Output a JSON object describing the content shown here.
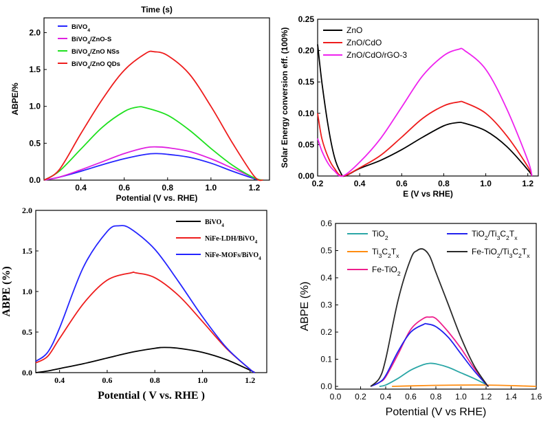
{
  "chart_data": [
    {
      "type": "line",
      "title": "Time (s)",
      "xlabel": "Potential (V vs. RHE)",
      "ylabel": "ABPE/%",
      "xlim": [
        0.23,
        1.27
      ],
      "ylim": [
        0,
        2.2
      ],
      "xticks": [
        0.4,
        0.6,
        0.8,
        1.0,
        1.2
      ],
      "yticks": [
        0.0,
        0.5,
        1.0,
        1.5,
        2.0
      ],
      "xtick_labels": [
        "0.4",
        "0.6",
        "0.8",
        "1.0",
        "1.2"
      ],
      "ytick_labels": [
        "0.0",
        "0.5",
        "1.0",
        "1.5",
        "2.0"
      ],
      "legend_position": "top-left",
      "series": [
        {
          "name": "BiVO₄",
          "color": "#2424ff",
          "x": [
            0.23,
            0.3,
            0.4,
            0.5,
            0.6,
            0.7,
            0.75,
            0.8,
            0.9,
            1.0,
            1.1,
            1.2,
            1.23
          ],
          "y": [
            0.0,
            0.04,
            0.12,
            0.21,
            0.29,
            0.35,
            0.36,
            0.35,
            0.31,
            0.23,
            0.12,
            0.02,
            0.0
          ]
        },
        {
          "name": "BiVO₄/ZnO-S",
          "color": "#e020e0",
          "x": [
            0.23,
            0.3,
            0.4,
            0.5,
            0.6,
            0.7,
            0.75,
            0.8,
            0.9,
            1.0,
            1.1,
            1.2,
            1.23
          ],
          "y": [
            0.0,
            0.04,
            0.14,
            0.25,
            0.36,
            0.44,
            0.45,
            0.44,
            0.39,
            0.29,
            0.16,
            0.03,
            0.0
          ]
        },
        {
          "name": "BiVO₄/ZnO NSs",
          "color": "#1ee01e",
          "x": [
            0.23,
            0.3,
            0.4,
            0.5,
            0.6,
            0.66,
            0.7,
            0.8,
            0.9,
            1.0,
            1.1,
            1.2,
            1.24
          ],
          "y": [
            0.0,
            0.12,
            0.42,
            0.72,
            0.93,
            0.99,
            0.98,
            0.88,
            0.68,
            0.43,
            0.2,
            0.03,
            0.0
          ]
        },
        {
          "name": "BiVO₄/ZnO QDs",
          "color": "#ee1c1c",
          "x": [
            0.23,
            0.3,
            0.4,
            0.5,
            0.6,
            0.7,
            0.74,
            0.8,
            0.9,
            1.0,
            1.1,
            1.2,
            1.24
          ],
          "y": [
            0.0,
            0.14,
            0.63,
            1.1,
            1.49,
            1.72,
            1.74,
            1.69,
            1.44,
            1.0,
            0.5,
            0.05,
            0.0
          ]
        }
      ]
    },
    {
      "type": "line",
      "xlabel": "E (V vs RHE)",
      "ylabel": "Solar Energy conversion eff. (100%)",
      "xlim": [
        0.2,
        1.25
      ],
      "ylim": [
        0,
        0.25
      ],
      "xticks": [
        0.2,
        0.4,
        0.6,
        0.8,
        1.0,
        1.2
      ],
      "yticks": [
        0.0,
        0.05,
        0.1,
        0.15,
        0.2,
        0.25
      ],
      "xtick_labels": [
        "0.2",
        "0.4",
        "0.6",
        "0.8",
        "1.0",
        "1.2"
      ],
      "ytick_labels": [
        "0.00",
        "0.05",
        "0.10",
        "0.15",
        "0.20",
        "0.25"
      ],
      "legend_position": "top-left",
      "series": [
        {
          "name": "ZnO",
          "color": "#000000",
          "x": [
            0.2,
            0.22,
            0.25,
            0.28,
            0.31,
            0.33,
            0.4,
            0.5,
            0.6,
            0.7,
            0.8,
            0.86,
            0.9,
            1.0,
            1.1,
            1.2,
            1.22
          ],
          "y": [
            0.21,
            0.15,
            0.08,
            0.03,
            0.005,
            0.0,
            0.012,
            0.025,
            0.042,
            0.062,
            0.08,
            0.085,
            0.084,
            0.072,
            0.047,
            0.01,
            0.0
          ]
        },
        {
          "name": "ZnO/CdO",
          "color": "#ee1c1c",
          "x": [
            0.2,
            0.22,
            0.25,
            0.28,
            0.32,
            0.4,
            0.5,
            0.6,
            0.7,
            0.8,
            0.87,
            0.9,
            1.0,
            1.1,
            1.2,
            1.22
          ],
          "y": [
            0.1,
            0.06,
            0.03,
            0.012,
            0.0,
            0.013,
            0.033,
            0.062,
            0.092,
            0.112,
            0.118,
            0.117,
            0.1,
            0.064,
            0.015,
            0.0
          ]
        },
        {
          "name": "ZnO/CdO/rGO-3",
          "color": "#ee22ee",
          "x": [
            0.2,
            0.22,
            0.25,
            0.28,
            0.32,
            0.4,
            0.5,
            0.6,
            0.7,
            0.8,
            0.87,
            0.9,
            1.0,
            1.1,
            1.2,
            1.22
          ],
          "y": [
            0.06,
            0.04,
            0.02,
            0.008,
            0.0,
            0.022,
            0.06,
            0.11,
            0.16,
            0.192,
            0.202,
            0.2,
            0.17,
            0.107,
            0.025,
            0.0
          ]
        }
      ]
    },
    {
      "type": "line",
      "xlabel": "Potential ( V vs. RHE )",
      "ylabel": "ABPE (%)",
      "xlim": [
        0.3,
        1.27
      ],
      "ylim": [
        0,
        2.0
      ],
      "xticks": [
        0.4,
        0.6,
        0.8,
        1.0,
        1.2
      ],
      "yticks": [
        0.0,
        0.5,
        1.0,
        1.5,
        2.0
      ],
      "xtick_labels": [
        "0.4",
        "0.6",
        "0.8",
        "1.0",
        "1.2"
      ],
      "ytick_labels": [
        "0.0",
        "0.5",
        "1.0",
        "1.5",
        "2.0"
      ],
      "legend_position": "top-right",
      "series": [
        {
          "name": "BiVO₄",
          "color": "#000000",
          "x": [
            0.3,
            0.35,
            0.4,
            0.5,
            0.6,
            0.7,
            0.8,
            0.84,
            0.9,
            1.0,
            1.1,
            1.2,
            1.22
          ],
          "y": [
            0.0,
            0.02,
            0.05,
            0.11,
            0.18,
            0.25,
            0.3,
            0.31,
            0.3,
            0.25,
            0.16,
            0.03,
            0.0
          ]
        },
        {
          "name": "NiFe-LDH/BiVO₄",
          "color": "#ee1c1c",
          "x": [
            0.3,
            0.35,
            0.4,
            0.5,
            0.6,
            0.7,
            0.72,
            0.8,
            0.9,
            1.0,
            1.1,
            1.2,
            1.22
          ],
          "y": [
            0.12,
            0.2,
            0.42,
            0.85,
            1.14,
            1.23,
            1.23,
            1.17,
            0.95,
            0.63,
            0.3,
            0.04,
            0.0
          ]
        },
        {
          "name": "NiFe-MOFs/BiVO₄",
          "color": "#2424ff",
          "x": [
            0.3,
            0.35,
            0.4,
            0.5,
            0.6,
            0.65,
            0.7,
            0.8,
            0.9,
            1.0,
            1.1,
            1.2,
            1.22
          ],
          "y": [
            0.14,
            0.25,
            0.55,
            1.3,
            1.74,
            1.81,
            1.77,
            1.52,
            1.12,
            0.69,
            0.31,
            0.04,
            0.0
          ]
        }
      ]
    },
    {
      "type": "line",
      "xlabel": "Potential (V vs RHE)",
      "ylabel": "ABPE (%)",
      "xlim": [
        0.0,
        1.6
      ],
      "ylim": [
        -0.01,
        0.6
      ],
      "xticks": [
        0.0,
        0.2,
        0.4,
        0.6,
        0.8,
        1.0,
        1.2,
        1.4,
        1.6
      ],
      "yticks": [
        0.0,
        0.1,
        0.2,
        0.3,
        0.4,
        0.5,
        0.6
      ],
      "xtick_labels": [
        "0.0",
        "0.2",
        "0.4",
        "0.6",
        "0.8",
        "1.0",
        "1.2",
        "1.4",
        "1.6"
      ],
      "ytick_labels": [
        "0.0",
        "0.1",
        "0.2",
        "0.3",
        "0.4",
        "0.5",
        "0.6"
      ],
      "legend_position": "top",
      "series": [
        {
          "name": "TiO₂",
          "color": "#2aa6a6",
          "x": [
            0.35,
            0.4,
            0.5,
            0.6,
            0.7,
            0.75,
            0.8,
            0.9,
            1.0,
            1.1,
            1.2,
            1.22
          ],
          "y": [
            0.0,
            0.005,
            0.03,
            0.06,
            0.08,
            0.085,
            0.083,
            0.07,
            0.05,
            0.03,
            0.007,
            0.0
          ]
        },
        {
          "name": "Ti₃C₂Tₓ",
          "color": "#ff8c10",
          "x": [
            0.45,
            0.6,
            0.8,
            1.0,
            1.2,
            1.4,
            1.6
          ],
          "y": [
            0.0,
            0.002,
            0.004,
            0.005,
            0.005,
            0.003,
            0.0
          ]
        },
        {
          "name": "Fe-TiO₂",
          "color": "#ee1e8c",
          "x": [
            0.28,
            0.35,
            0.4,
            0.5,
            0.6,
            0.7,
            0.75,
            0.8,
            0.9,
            1.0,
            1.1,
            1.2,
            1.22
          ],
          "y": [
            0.0,
            0.015,
            0.035,
            0.12,
            0.21,
            0.25,
            0.255,
            0.25,
            0.2,
            0.14,
            0.07,
            0.01,
            0.0
          ]
        },
        {
          "name": "TiO₂/Ti₃C₂Tₓ",
          "color": "#2020ee",
          "x": [
            0.28,
            0.35,
            0.4,
            0.5,
            0.6,
            0.7,
            0.73,
            0.8,
            0.9,
            1.0,
            1.1,
            1.2,
            1.22
          ],
          "y": [
            0.0,
            0.015,
            0.04,
            0.13,
            0.2,
            0.228,
            0.23,
            0.22,
            0.18,
            0.12,
            0.06,
            0.008,
            0.0
          ]
        },
        {
          "name": "Fe-TiO₂/Ti₃C₂Tₓ",
          "color": "#2a2a2a",
          "x": [
            0.28,
            0.35,
            0.4,
            0.5,
            0.6,
            0.65,
            0.7,
            0.75,
            0.8,
            0.9,
            1.0,
            1.1,
            1.2,
            1.22
          ],
          "y": [
            0.0,
            0.03,
            0.1,
            0.32,
            0.47,
            0.5,
            0.505,
            0.48,
            0.42,
            0.3,
            0.18,
            0.08,
            0.01,
            0.0
          ]
        }
      ]
    }
  ]
}
